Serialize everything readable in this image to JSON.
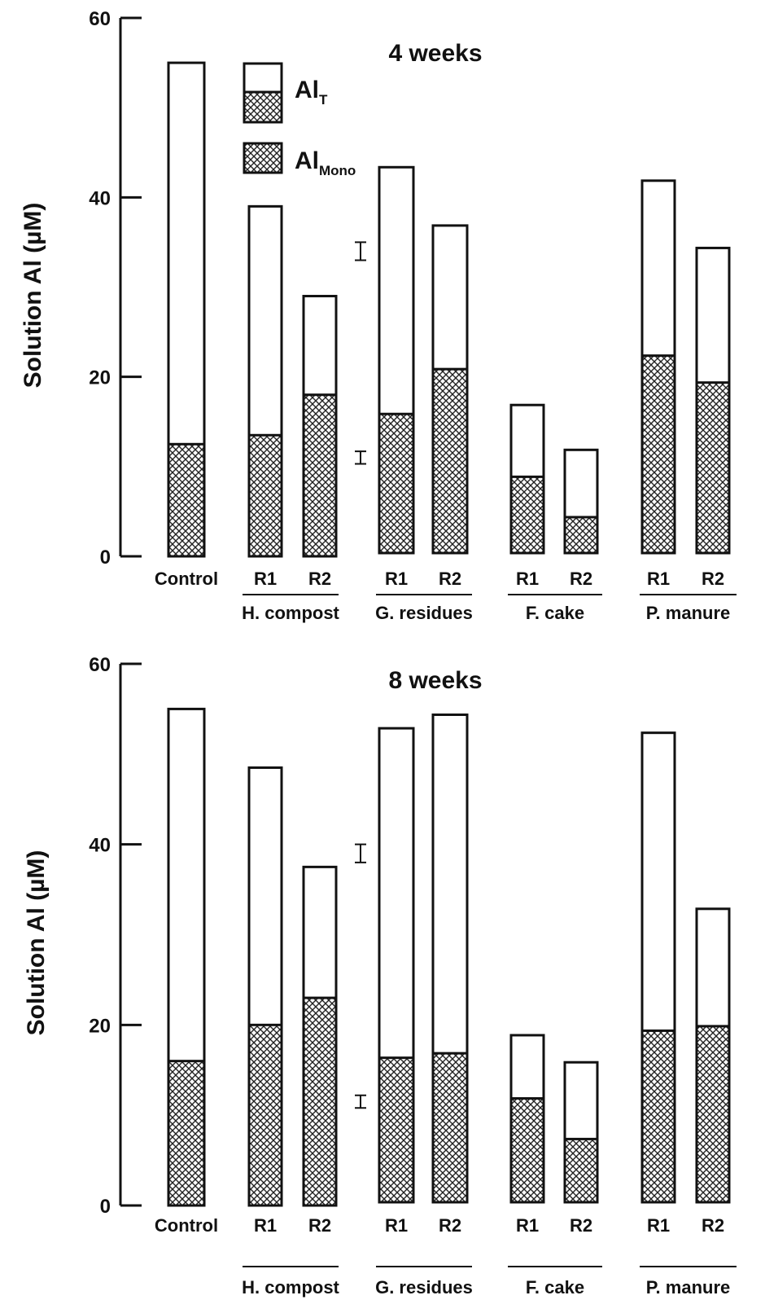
{
  "legend": {
    "total_main": "Al",
    "total_sub": "T",
    "mono_main": "Al",
    "mono_sub": "Mono"
  },
  "chart_data": [
    {
      "type": "bar",
      "title": "4 weeks",
      "ylabel": "Solution Al (µM)",
      "ylim": [
        0,
        60
      ],
      "yticks": [
        "0",
        "20",
        "40",
        "60"
      ],
      "categories": [
        "Control",
        "R1",
        "R2",
        "R1",
        "R2",
        "R1",
        "R2",
        "R1",
        "R2"
      ],
      "groups": [
        {
          "label": "H. compost",
          "members": [
            1,
            2
          ]
        },
        {
          "label": "G. residues",
          "members": [
            3,
            4
          ]
        },
        {
          "label": "F. cake",
          "members": [
            5,
            6
          ]
        },
        {
          "label": "P. manure",
          "members": [
            7,
            8
          ]
        }
      ],
      "series": [
        {
          "name": "AlT",
          "values": [
            55,
            39,
            29,
            43,
            36.5,
            16.5,
            11.5,
            41.5,
            34
          ]
        },
        {
          "name": "AlMono",
          "values": [
            12.5,
            13.5,
            18,
            15.5,
            20.5,
            8.5,
            4,
            22,
            19
          ]
        }
      ],
      "error_bars": [
        {
          "center": 34,
          "half_range": 1
        },
        {
          "center": 11,
          "half_range": 0.7
        }
      ],
      "grid": false,
      "legend_position": "top-left"
    },
    {
      "type": "bar",
      "title": "8 weeks",
      "ylabel": "Solution Al (µM)",
      "ylim": [
        0,
        60
      ],
      "yticks": [
        "0",
        "20",
        "40",
        "60"
      ],
      "categories": [
        "Control",
        "R1",
        "R2",
        "R1",
        "R2",
        "R1",
        "R2",
        "R1",
        "R2"
      ],
      "groups": [
        {
          "label": "H. compost",
          "members": [
            1,
            2
          ]
        },
        {
          "label": "G. residues",
          "members": [
            3,
            4
          ]
        },
        {
          "label": "F. cake",
          "members": [
            5,
            6
          ]
        },
        {
          "label": "P. manure",
          "members": [
            7,
            8
          ]
        }
      ],
      "series": [
        {
          "name": "AlT",
          "values": [
            55,
            48.5,
            37.5,
            52.5,
            54,
            18.5,
            15.5,
            52,
            32.5
          ]
        },
        {
          "name": "AlMono",
          "values": [
            16,
            20,
            23,
            16,
            16.5,
            11.5,
            7,
            19,
            19.5
          ]
        }
      ],
      "error_bars": [
        {
          "center": 39,
          "half_range": 1
        },
        {
          "center": 11.5,
          "half_range": 0.7
        }
      ],
      "grid": false,
      "legend_position": "none"
    }
  ]
}
